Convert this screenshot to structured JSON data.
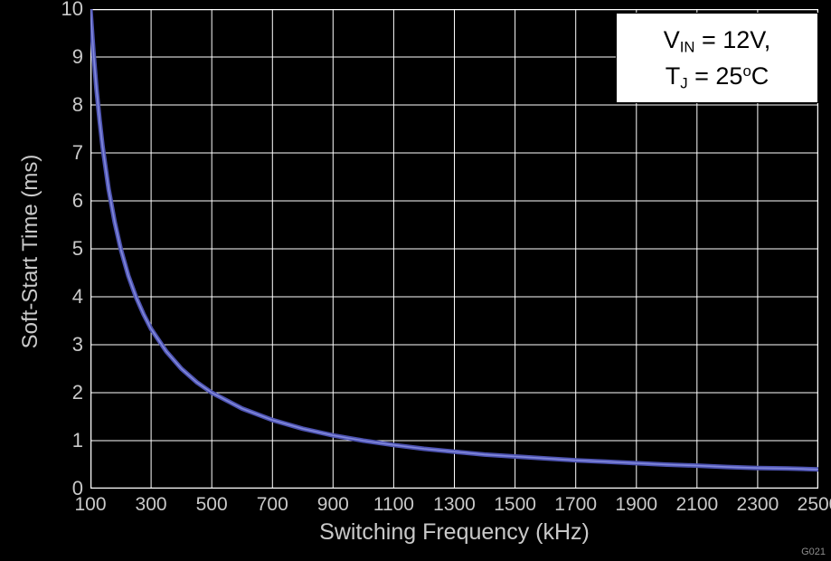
{
  "colors": {
    "background": "#000000",
    "grid": "#ffffff",
    "curve": "#4e54b2",
    "curve_highlight": "#8289dc",
    "text": "#c9c9c9",
    "annotation_bg": "#ffffff",
    "annotation_text": "#000000",
    "watermark": "#8d8d8d"
  },
  "y_axis": {
    "title": "Soft-Start Time (ms)",
    "ticks": [
      "0",
      "1",
      "2",
      "3",
      "4",
      "5",
      "6",
      "7",
      "8",
      "9",
      "10"
    ],
    "min": 0,
    "max": 10
  },
  "x_axis": {
    "title": "Switching Frequency (kHz)",
    "ticks": [
      "100",
      "300",
      "500",
      "700",
      "900",
      "1100",
      "1300",
      "1500",
      "1700",
      "1900",
      "2100",
      "2300",
      "2500"
    ],
    "min": 100,
    "max": 2500
  },
  "annotation": {
    "line1_main": "V",
    "line1_sub": "IN",
    "line1_rest": " = 12V,",
    "line2_main": "T",
    "line2_sub": "J",
    "line2_rest": " = 25",
    "line2_sup": "o",
    "line2_end": "C"
  },
  "watermark": "G021",
  "chart_data": {
    "type": "line",
    "title": "",
    "xlabel": "Switching Frequency (kHz)",
    "ylabel": "Soft-Start Time (ms)",
    "xlim": [
      100,
      2500
    ],
    "ylim": [
      0,
      10
    ],
    "grid": true,
    "legend": "none",
    "annotation": "VIN = 12V, TJ = 25C",
    "series_name": "soft-start-time",
    "x": [
      100,
      110,
      120,
      130,
      140,
      160,
      180,
      200,
      225,
      250,
      275,
      300,
      350,
      400,
      450,
      500,
      600,
      700,
      800,
      900,
      1000,
      1100,
      1200,
      1300,
      1400,
      1500,
      1600,
      1700,
      1800,
      1900,
      2000,
      2100,
      2200,
      2300,
      2400,
      2500
    ],
    "y": [
      10,
      9.09,
      8.33,
      7.69,
      7.14,
      6.25,
      5.56,
      5,
      4.44,
      4,
      3.64,
      3.33,
      2.86,
      2.5,
      2.22,
      2,
      1.67,
      1.43,
      1.25,
      1.11,
      1,
      0.91,
      0.83,
      0.77,
      0.71,
      0.67,
      0.63,
      0.59,
      0.56,
      0.53,
      0.5,
      0.48,
      0.45,
      0.43,
      0.42,
      0.4
    ]
  }
}
